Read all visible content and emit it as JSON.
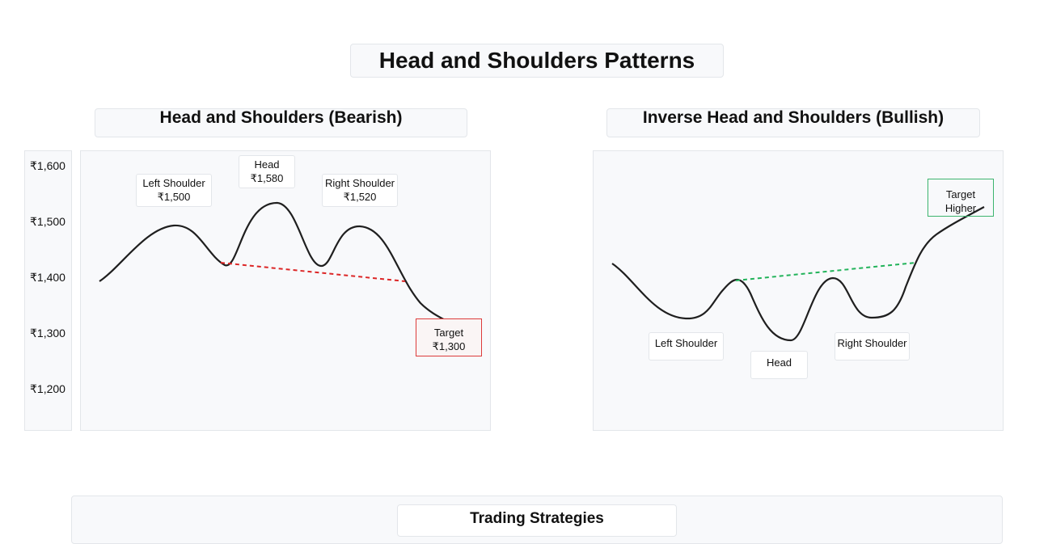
{
  "title": "Head and Shoulders Patterns",
  "bearish": {
    "title": "Head and Shoulders (Bearish)",
    "y_ticks": [
      "₹1,600",
      "₹1,500",
      "₹1,400",
      "₹1,300",
      "₹1,200"
    ],
    "left_shoulder": {
      "name": "Left Shoulder",
      "value": "₹1,500"
    },
    "head": {
      "name": "Head",
      "value": "₹1,580"
    },
    "right_shoulder": {
      "name": "Right Shoulder",
      "value": "₹1,520"
    },
    "target": {
      "name": "Target",
      "value": "₹1,300"
    },
    "neckline_color": "#dc2626"
  },
  "bullish": {
    "title": "Inverse Head and Shoulders (Bullish)",
    "left_shoulder": "Left Shoulder",
    "head": "Head",
    "right_shoulder": "Right Shoulder",
    "target_line1": "Target",
    "target_line2": "Higher",
    "neckline_color": "#22b35a"
  },
  "strategies": {
    "title": "Trading Strategies"
  }
}
